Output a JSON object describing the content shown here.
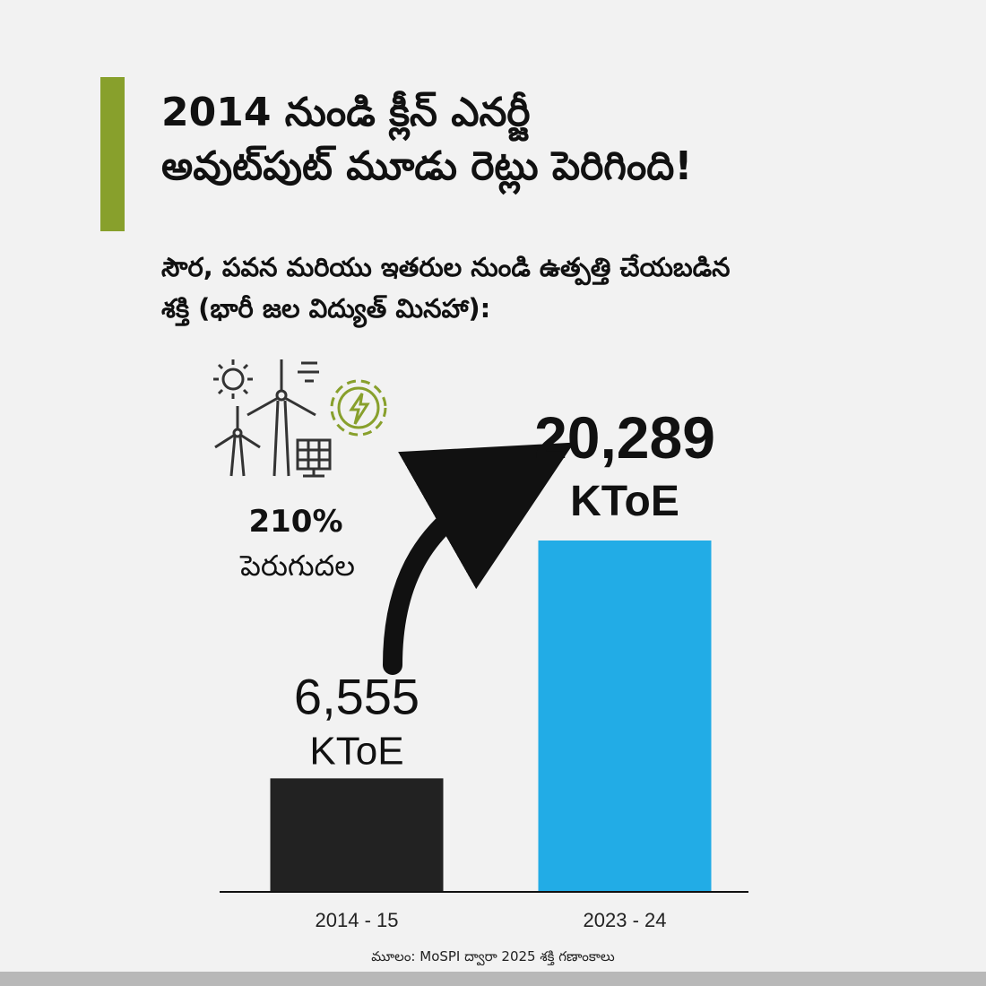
{
  "header": {
    "title_lines": [
      "2014 నుండి క్లీన్ ఎనర్జీ",
      "అవుట్‌పుట్ మూడు రెట్లు పెరిగింది!"
    ],
    "subtitle_lines": [
      "సౌర, పవన మరియు ఇతరుల నుండి ఉత్పత్తి చేయబడిన",
      "శక్తి (భారీ జల విద్యుత్ మినహా):"
    ]
  },
  "growth": {
    "percent": "210%",
    "label": "పెరుగుదల"
  },
  "icons": [
    "sun-icon",
    "wind-icon",
    "wind-turbine-icon",
    "solar-panel-icon",
    "energy-gear-icon"
  ],
  "chart_data": {
    "type": "bar",
    "categories": [
      "2014 - 15",
      "2023 - 24"
    ],
    "values": [
      6555,
      20289
    ],
    "value_labels": [
      "6,555",
      "20,289"
    ],
    "unit_label": "KToE",
    "colors": [
      "#222222",
      "#22ace6"
    ],
    "ylim": [
      0,
      20289
    ]
  },
  "source": "మూలం: MoSPI ద్వారా 2025 శక్తి గణాంకాలు"
}
